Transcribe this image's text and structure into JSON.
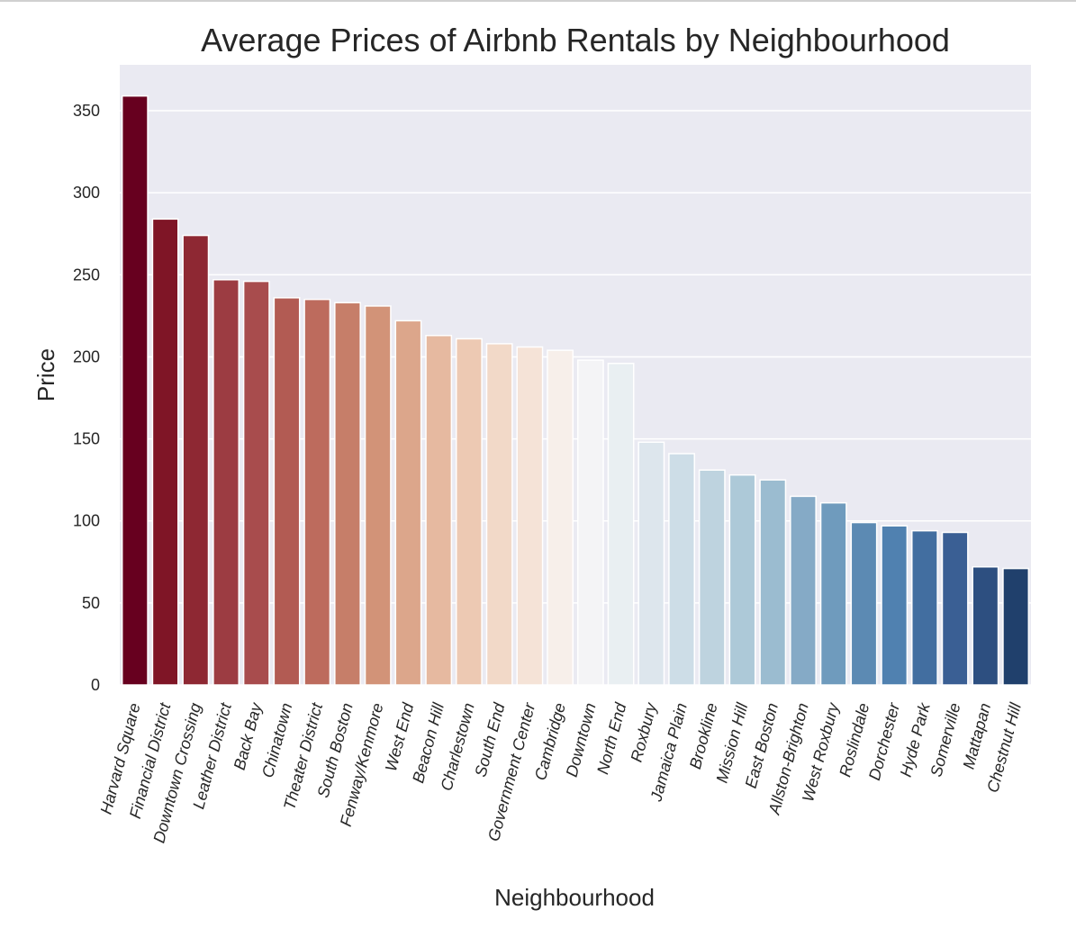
{
  "chart_data": {
    "type": "bar",
    "title": "Average Prices of Airbnb Rentals by Neighbourhood",
    "xlabel": "Neighbourhood",
    "ylabel": "Price",
    "ylim": [
      0,
      378
    ],
    "yticks": [
      0,
      50,
      100,
      150,
      200,
      250,
      300,
      350
    ],
    "grid": true,
    "background_color": "#eaeaf2",
    "grid_color": "#ffffff",
    "categories": [
      "Harvard Square",
      "Financial District",
      "Downtown Crossing",
      "Leather District",
      "Back Bay",
      "Chinatown",
      "Theater District",
      "South Boston",
      "Fenway/Kenmore",
      "West End",
      "Beacon Hill",
      "Charlestown",
      "South End",
      "Government Center",
      "Cambridge",
      "Downtown",
      "North End",
      "Roxbury",
      "Jamaica Plain",
      "Brookline",
      "Mission Hill",
      "East Boston",
      "Allston-Brighton",
      "West Roxbury",
      "Roslindale",
      "Dorchester",
      "Hyde Park",
      "Somerville",
      "Mattapan",
      "Chestnut Hill"
    ],
    "values": [
      359,
      284,
      274,
      247,
      246,
      236,
      235,
      233,
      231,
      222,
      213,
      211,
      208,
      206,
      204,
      198,
      196,
      148,
      141,
      131,
      128,
      125,
      115,
      111,
      99,
      97,
      94,
      93,
      72,
      71
    ],
    "colors": [
      "#67001f",
      "#7f1526",
      "#8e2833",
      "#9c3c42",
      "#a84c4d",
      "#b25b53",
      "#bd6b5d",
      "#c67e69",
      "#d29378",
      "#dca68b",
      "#e6b9a0",
      "#edc9b3",
      "#f2d9c8",
      "#f5e3d7",
      "#f7efea",
      "#f4f4f6",
      "#e9eff2",
      "#dde6ed",
      "#cddde7",
      "#bed3df",
      "#adc9d8",
      "#9bbcd0",
      "#85aac6",
      "#6f9bbd",
      "#5c8ab3",
      "#5081b0",
      "#426ea0",
      "#3a5f94",
      "#2d4f80",
      "#20406c"
    ]
  }
}
